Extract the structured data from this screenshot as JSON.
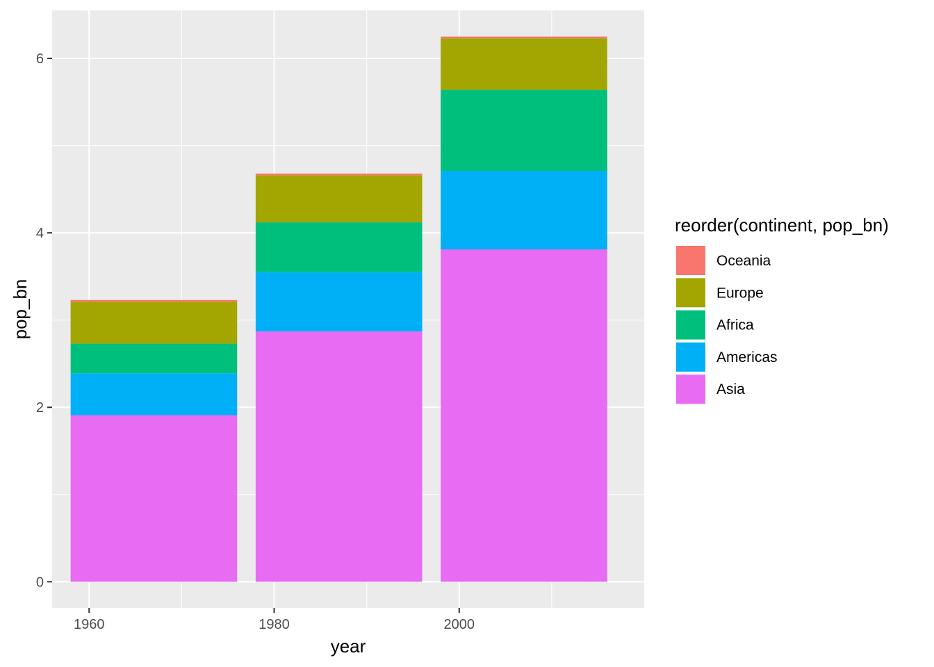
{
  "chart_data": {
    "type": "bar",
    "stacked": true,
    "xlabel": "year",
    "ylabel": "pop_bn",
    "x_ticks": [
      1960,
      1980,
      2000
    ],
    "y_ticks": [
      0,
      2,
      4,
      6
    ],
    "xlim": [
      1956,
      2020
    ],
    "ylim": [
      -0.3,
      6.55
    ],
    "categories": [
      1967,
      1987,
      2007
    ],
    "bar_width": 18,
    "grid": true,
    "legend": {
      "title": "reorder(continent, pop_bn)",
      "position": "right",
      "entries": [
        "Oceania",
        "Europe",
        "Africa",
        "Americas",
        "Asia"
      ]
    },
    "series": [
      {
        "name": "Asia",
        "color": "#E76BF3",
        "values": [
          1.91,
          2.87,
          3.81
        ]
      },
      {
        "name": "Americas",
        "color": "#00B0F6",
        "values": [
          0.48,
          0.68,
          0.9
        ]
      },
      {
        "name": "Africa",
        "color": "#00BF7D",
        "values": [
          0.34,
          0.57,
          0.93
        ]
      },
      {
        "name": "Europe",
        "color": "#A3A500",
        "values": [
          0.48,
          0.54,
          0.59
        ]
      },
      {
        "name": "Oceania",
        "color": "#F8766D",
        "values": [
          0.02,
          0.02,
          0.02
        ]
      }
    ]
  }
}
